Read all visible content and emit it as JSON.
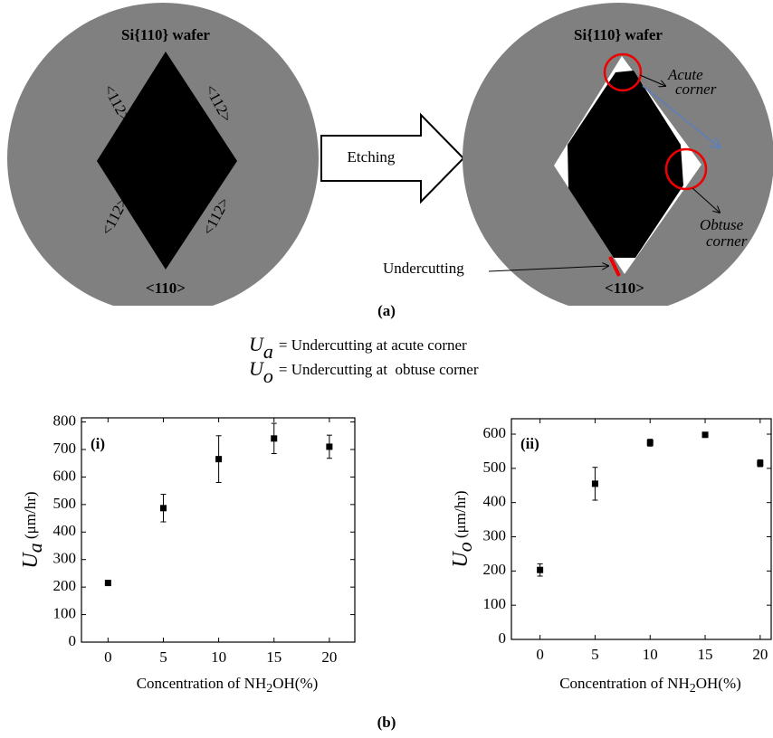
{
  "diagram": {
    "left_wafer": {
      "title": "Si{110} wafer",
      "edge_labels": [
        "<112>",
        "<112>",
        "<112>",
        "<112>"
      ],
      "bottom_label": "<110>"
    },
    "arrow_label": "Etching",
    "right_wafer": {
      "title": "Si{110} wafer",
      "acute_label": [
        "Acute",
        "corner"
      ],
      "obtuse_label": [
        "Obtuse",
        "corner"
      ],
      "undercut_label": "Undercutting",
      "bottom_label": "<110>"
    },
    "part_a": "(a)",
    "definitions": [
      {
        "symbol": "U",
        "subscript": "a",
        "text": "= Undercutting at acute corner"
      },
      {
        "symbol": "U",
        "subscript": "o",
        "text": "= Undercutting at  obtuse corner"
      }
    ],
    "part_b": "(b)"
  },
  "chart_data": [
    {
      "type": "scatter",
      "panel": "(i)",
      "ylabel": {
        "symbol": "U",
        "subscript": "a",
        "unit": " (μm/hr)"
      },
      "xlabel": {
        "before": "Concentration of NH",
        "subscript": "2",
        "after": "OH(%)"
      },
      "x": [
        0,
        5,
        10,
        15,
        20
      ],
      "values": [
        215,
        487,
        665,
        740,
        710
      ],
      "errors": [
        5,
        50,
        85,
        55,
        42
      ],
      "color": "#000000",
      "xlim": [
        -2.4,
        22.3
      ],
      "ylim": [
        0,
        815
      ],
      "xticks": [
        0,
        5,
        10,
        15,
        20
      ],
      "yticks": [
        0,
        100,
        200,
        300,
        400,
        500,
        600,
        700,
        800
      ]
    },
    {
      "type": "scatter",
      "panel": "(ii)",
      "ylabel": {
        "symbol": "U",
        "subscript": "o",
        "unit": " (μm/hr)"
      },
      "xlabel": {
        "before": "Concentration of NH",
        "subscript": "2",
        "after": "OH(%)"
      },
      "x": [
        0,
        5,
        10,
        15,
        20
      ],
      "values": [
        203,
        455,
        575,
        598,
        515
      ],
      "errors": [
        18,
        48,
        10,
        5,
        10
      ],
      "color": "#000000",
      "xlim": [
        -2.6,
        21
      ],
      "ylim": [
        0,
        645
      ],
      "xticks": [
        0,
        5,
        10,
        15,
        20
      ],
      "yticks": [
        0,
        100,
        200,
        300,
        400,
        500,
        600
      ]
    }
  ]
}
